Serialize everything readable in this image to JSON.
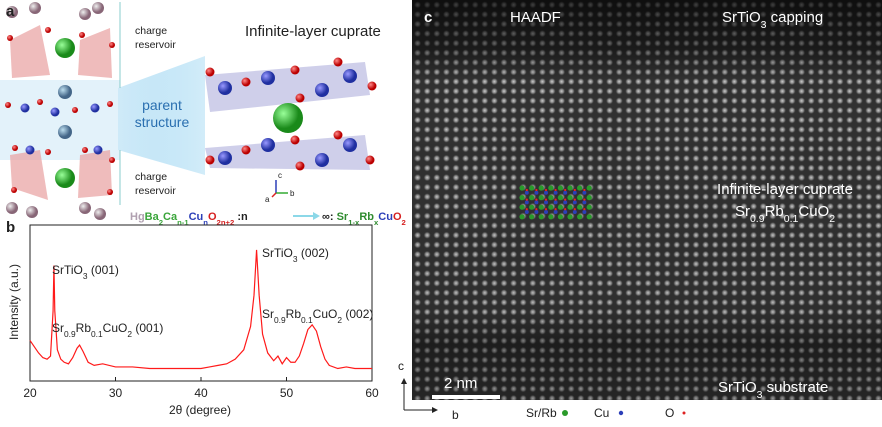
{
  "panel_a": {
    "label": "a",
    "title": "Infinite-layer cuprate",
    "reservoir_top": [
      "charge",
      "reservoir"
    ],
    "parent": [
      "parent",
      "structure"
    ],
    "reservoir_bottom": [
      "charge",
      "reservoir"
    ],
    "axes": [
      "c",
      "b",
      "a"
    ],
    "formula_left": [
      {
        "text": "Hg",
        "color": "#b0a0b0"
      },
      {
        "text": "Ba",
        "color": "#3aa53a"
      },
      {
        "text": "2",
        "sub": true,
        "color": "#3aa53a"
      },
      {
        "text": "Ca",
        "color": "#3aa53a"
      },
      {
        "text": "n-1",
        "sub": true,
        "color": "#3aa53a"
      },
      {
        "text": "Cu",
        "color": "#2c3fb8"
      },
      {
        "text": "n",
        "sub": true,
        "color": "#2c3fb8"
      },
      {
        "text": "O",
        "color": "#d62020"
      },
      {
        "text": "2n+2",
        "sub": true,
        "color": "#d62020"
      },
      {
        "text": " :n",
        "color": "#222222"
      }
    ],
    "formula_right": [
      {
        "text": "∞: ",
        "color": "#222222"
      },
      {
        "text": "Sr",
        "color": "#2e8b2e"
      },
      {
        "text": "1-x",
        "sub": true,
        "color": "#2e8b2e"
      },
      {
        "text": "Rb",
        "color": "#2e8b2e"
      },
      {
        "text": "x",
        "sub": true,
        "color": "#2e8b2e"
      },
      {
        "text": "Cu",
        "color": "#2c3fb8"
      },
      {
        "text": "O",
        "color": "#d62020"
      },
      {
        "text": "2",
        "sub": true,
        "color": "#d62020"
      }
    ]
  },
  "chart_data": {
    "type": "line",
    "panel_label": "b",
    "xlabel": "2θ (degree)",
    "ylabel": "Intensity (a.u.)",
    "color": "#ff1a1a",
    "xlim": [
      20,
      60
    ],
    "xticks": [
      20,
      30,
      40,
      50,
      60
    ],
    "ylim": [
      0,
      100
    ],
    "x": [
      20,
      20.5,
      21,
      21.5,
      22,
      22.4,
      22.7,
      22.8,
      22.9,
      23.2,
      23.6,
      24,
      24.5,
      25,
      25.5,
      25.8,
      26.2,
      26.8,
      27.5,
      28.5,
      30,
      32,
      34,
      36,
      38,
      40,
      41,
      42,
      43,
      44,
      45,
      45.8,
      46.2,
      46.5,
      46.8,
      47.2,
      47.8,
      48.5,
      49,
      49.5,
      50,
      50.5,
      51,
      51.5,
      52,
      52.5,
      53,
      53.5,
      54,
      54.5,
      55,
      56,
      57,
      58,
      59,
      60
    ],
    "values": [
      26,
      22,
      18,
      15,
      14,
      16,
      45,
      74,
      45,
      20,
      14,
      12,
      11,
      15,
      21,
      23,
      19,
      12,
      10,
      11,
      9,
      9,
      8,
      8,
      8,
      8,
      9,
      10,
      11,
      14,
      20,
      35,
      55,
      84,
      55,
      30,
      18,
      13,
      16,
      11,
      15,
      12,
      12,
      16,
      24,
      33,
      36,
      32,
      22,
      14,
      10,
      8,
      9,
      8,
      8,
      8
    ],
    "annotations": [
      [
        {
          "text": "SrTiO"
        },
        {
          "text": "3",
          "sub": true
        },
        {
          "text": " (001)"
        }
      ],
      [
        {
          "text": "Sr"
        },
        {
          "text": "0.9",
          "sub": true
        },
        {
          "text": "Rb"
        },
        {
          "text": "0.1",
          "sub": true
        },
        {
          "text": "CuO"
        },
        {
          "text": "2",
          "sub": true
        },
        {
          "text": " (001)"
        }
      ],
      [
        {
          "text": "SrTiO"
        },
        {
          "text": "3",
          "sub": true
        },
        {
          "text": " (002)"
        }
      ],
      [
        {
          "text": "Sr"
        },
        {
          "text": "0.9",
          "sub": true
        },
        {
          "text": "Rb"
        },
        {
          "text": "0.1",
          "sub": true
        },
        {
          "text": "CuO"
        },
        {
          "text": "2",
          "sub": true
        },
        {
          "text": " (002)"
        }
      ]
    ]
  },
  "panel_c": {
    "label": "c",
    "mode": "HAADF",
    "capping": [
      {
        "text": "SrTiO"
      },
      {
        "text": "3",
        "sub": true
      },
      {
        "text": " capping"
      }
    ],
    "film": "Infinite-layer cuprate",
    "film_formula": [
      {
        "text": "Sr"
      },
      {
        "text": "0.9",
        "sub": true
      },
      {
        "text": "Rb"
      },
      {
        "text": "0.1",
        "sub": true
      },
      {
        "text": "CuO"
      },
      {
        "text": "2",
        "sub": true
      }
    ],
    "scale_bar": "2 nm",
    "substrate": [
      {
        "text": "SrTiO"
      },
      {
        "text": "3",
        "sub": true
      },
      {
        "text": " substrate"
      }
    ],
    "axes": [
      "c",
      "b"
    ],
    "legend": [
      "Sr/Rb",
      "Cu",
      "O"
    ]
  }
}
